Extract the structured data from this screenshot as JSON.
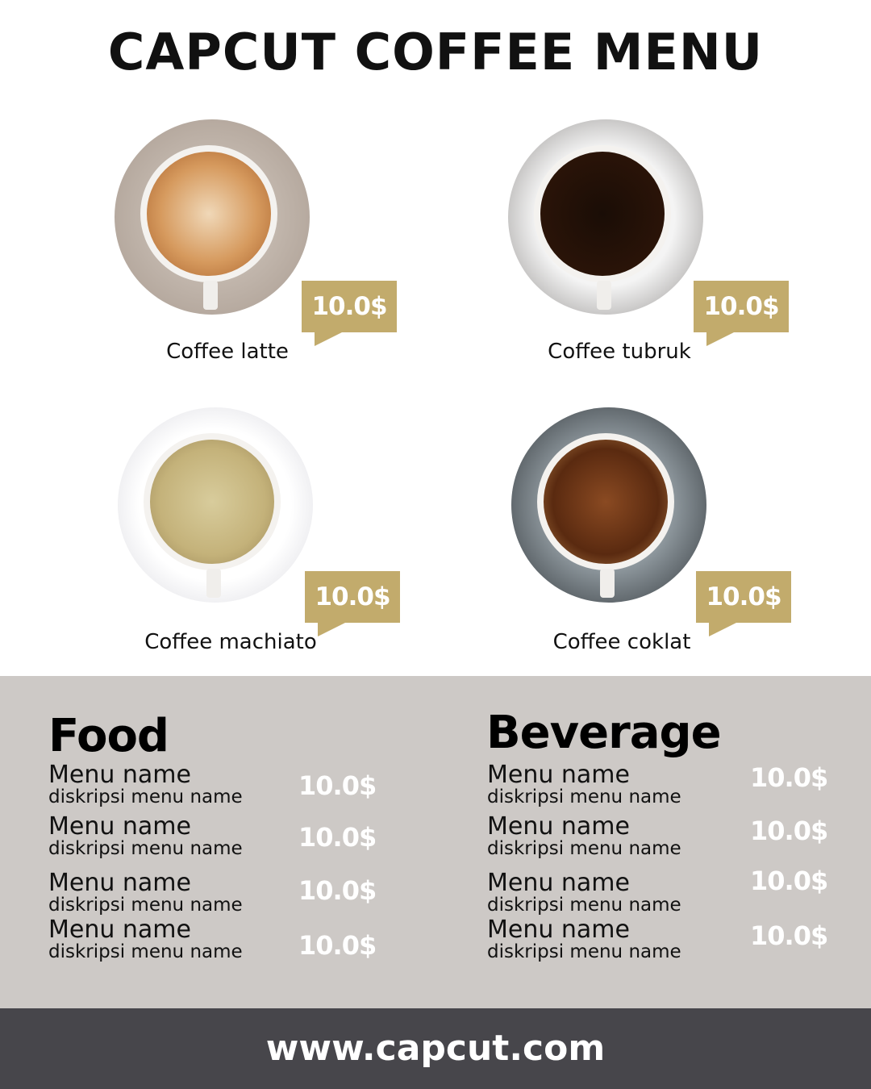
{
  "title": "CAPCUT COFFEE MENU",
  "coffees": [
    {
      "name": "Coffee latte",
      "price": "10.0$"
    },
    {
      "name": "Coffee tubruk",
      "price": "10.0$"
    },
    {
      "name": "Coffee machiato",
      "price": "10.0$"
    },
    {
      "name": "Coffee coklat",
      "price": "10.0$"
    }
  ],
  "food": {
    "title": "Food",
    "items": [
      {
        "name": "Menu name",
        "desc": "diskripsi menu name",
        "price": "10.0$"
      },
      {
        "name": "Menu name",
        "desc": "diskripsi menu name",
        "price": "10.0$"
      },
      {
        "name": "Menu name",
        "desc": "diskripsi menu name",
        "price": "10.0$"
      },
      {
        "name": "Menu name",
        "desc": "diskripsi menu name",
        "price": "10.0$"
      }
    ]
  },
  "beverage": {
    "title": "Beverage",
    "items": [
      {
        "name": "Menu name",
        "desc": "diskripsi menu name",
        "price": "10.0$"
      },
      {
        "name": "Menu name",
        "desc": "diskripsi menu name",
        "price": "10.0$"
      },
      {
        "name": "Menu name",
        "desc": "diskripsi menu name",
        "price": "10.0$"
      },
      {
        "name": "Menu name",
        "desc": "diskripsi menu name",
        "price": "10.0$"
      }
    ]
  },
  "footer": "www.capcut.com",
  "colors": {
    "accent": "#c2ab6c",
    "panel": "#cdc9c6",
    "footer": "#47464b"
  }
}
